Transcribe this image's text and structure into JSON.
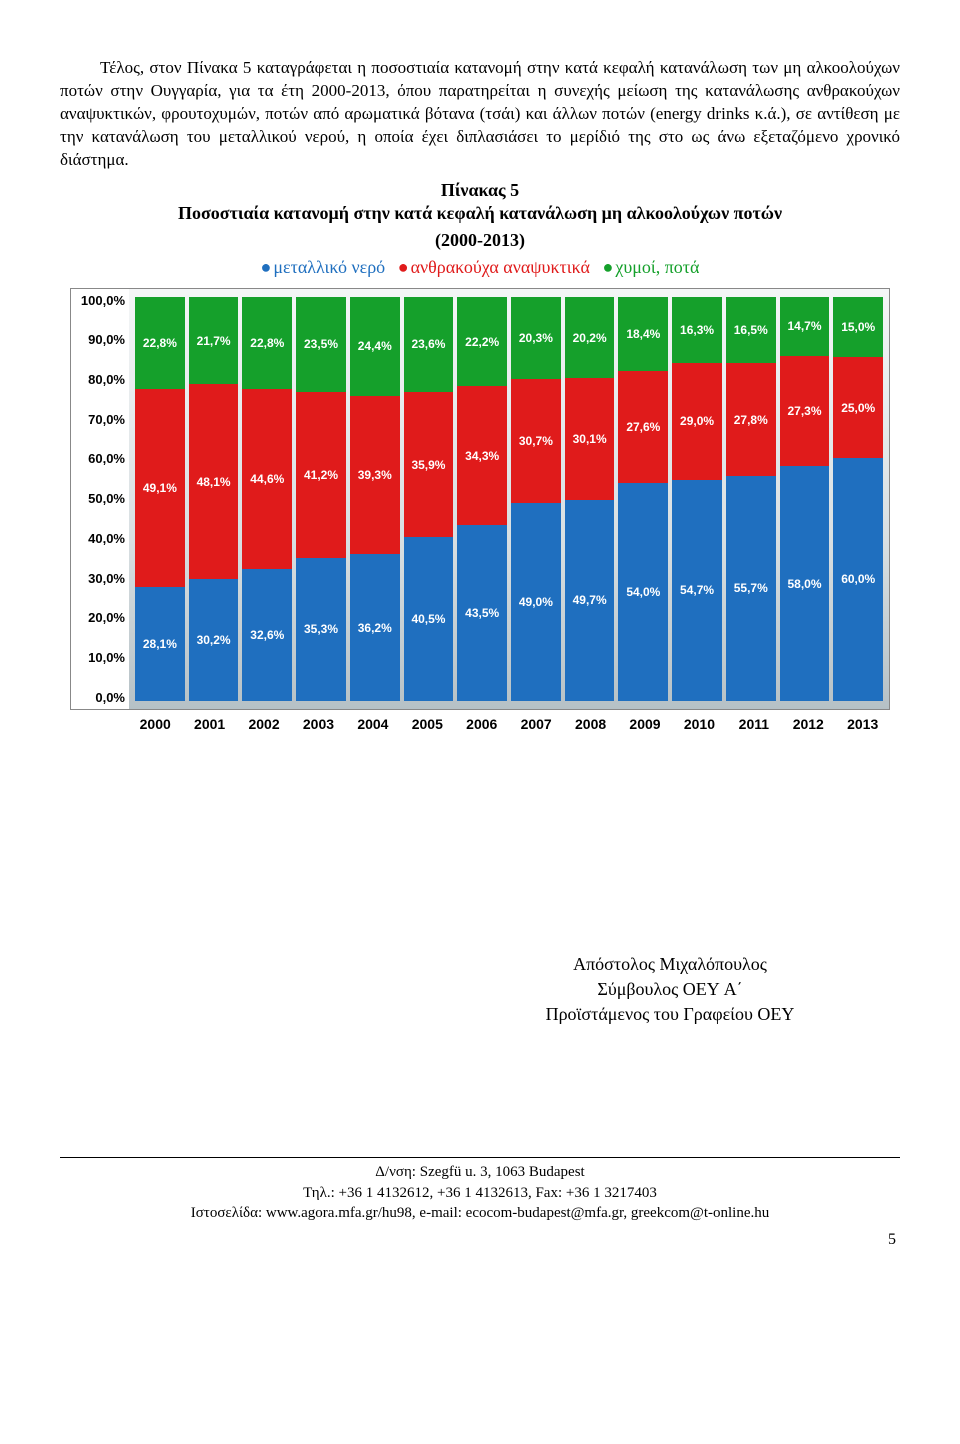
{
  "paragraph": "Τέλος, στον Πίνακα 5 καταγράφεται η ποσοστιαία κατανομή στην κατά κεφαλή κατανάλωση των μη αλκοολούχων ποτών στην Ουγγαρία, για τα έτη 2000-2013, όπου παρατηρείται η συνεχής μείωση της κατανάλωσης ανθρακούχων αναψυκτικών, φρουτοχυμών, ποτών από αρωματικά βότανα (τσάι) και άλλων ποτών (energy drinks κ.ά.), σε αντίθεση με την κατανάλωση του μεταλλικού νερού, η οποία έχει διπλασιάσει το μερίδιό της στο ως άνω εξεταζόμενο χρονικό διάστημα.",
  "chart_title": "Πίνακας 5",
  "chart_subtitle_l1": "Ποσοστιαία κατανομή στην κατά κεφαλή κατανάλωση μη αλκοολούχων ποτών",
  "chart_subtitle_l2": "(2000-2013)",
  "legend": [
    {
      "label": "μεταλλικό νερό",
      "color": "#1f6fbf"
    },
    {
      "label": "ανθρακούχα αναψυκτικά",
      "color": "#e01b1b"
    },
    {
      "label": "χυμοί, ποτά",
      "color": "#15a02b"
    }
  ],
  "chart": {
    "type": "stacked-bar-100",
    "years": [
      "2000",
      "2001",
      "2002",
      "2003",
      "2004",
      "2005",
      "2006",
      "2007",
      "2008",
      "2009",
      "2010",
      "2011",
      "2012",
      "2013"
    ],
    "y_ticks": [
      "100,0%",
      "90,0%",
      "80,0%",
      "70,0%",
      "60,0%",
      "50,0%",
      "40,0%",
      "30,0%",
      "20,0%",
      "10,0%",
      "0,0%"
    ],
    "series_colors": {
      "water": "#1f6fbf",
      "soda": "#e01b1b",
      "juice": "#15a02b"
    },
    "label_color": "#ffffff",
    "label_fontsize": 12,
    "axis_fontsize": 13,
    "background_gradient": [
      "#f4f6f7",
      "#b6c1c6"
    ],
    "data": [
      {
        "water": 28.1,
        "soda": 49.1,
        "juice": 22.8
      },
      {
        "water": 30.2,
        "soda": 48.1,
        "juice": 21.7
      },
      {
        "water": 32.6,
        "soda": 44.6,
        "juice": 22.8
      },
      {
        "water": 35.3,
        "soda": 41.2,
        "juice": 23.5
      },
      {
        "water": 36.2,
        "soda": 39.3,
        "juice": 24.4
      },
      {
        "water": 40.5,
        "soda": 35.9,
        "juice": 23.6
      },
      {
        "water": 43.5,
        "soda": 34.3,
        "juice": 22.2
      },
      {
        "water": 49.0,
        "soda": 30.7,
        "juice": 20.3
      },
      {
        "water": 49.7,
        "soda": 30.1,
        "juice": 20.2
      },
      {
        "water": 54.0,
        "soda": 27.6,
        "juice": 18.4
      },
      {
        "water": 54.7,
        "soda": 29.0,
        "juice": 16.3
      },
      {
        "water": 55.7,
        "soda": 27.8,
        "juice": 16.5
      },
      {
        "water": 58.0,
        "soda": 27.3,
        "juice": 14.7
      },
      {
        "water": 60.0,
        "soda": 25.0,
        "juice": 15.0
      }
    ]
  },
  "signature": {
    "name": "Απόστολος Μιχαλόπουλος",
    "title": "Σύμβουλος ΟΕΥ A΄",
    "role": "Προϊστάμενος του Γραφείου ΟΕΥ"
  },
  "footer": {
    "line1": "Δ/νση: Szegfü u. 3, 1063 Budapest",
    "line2": "Τηλ.: +36 1 4132612, +36 1 4132613, Fax: +36 1 3217403",
    "line3": "Ιστοσελίδα: www.agora.mfa.gr/hu98, e-mail: ecocom-budapest@mfa.gr, greekcom@t-online.hu"
  },
  "page_number": "5"
}
